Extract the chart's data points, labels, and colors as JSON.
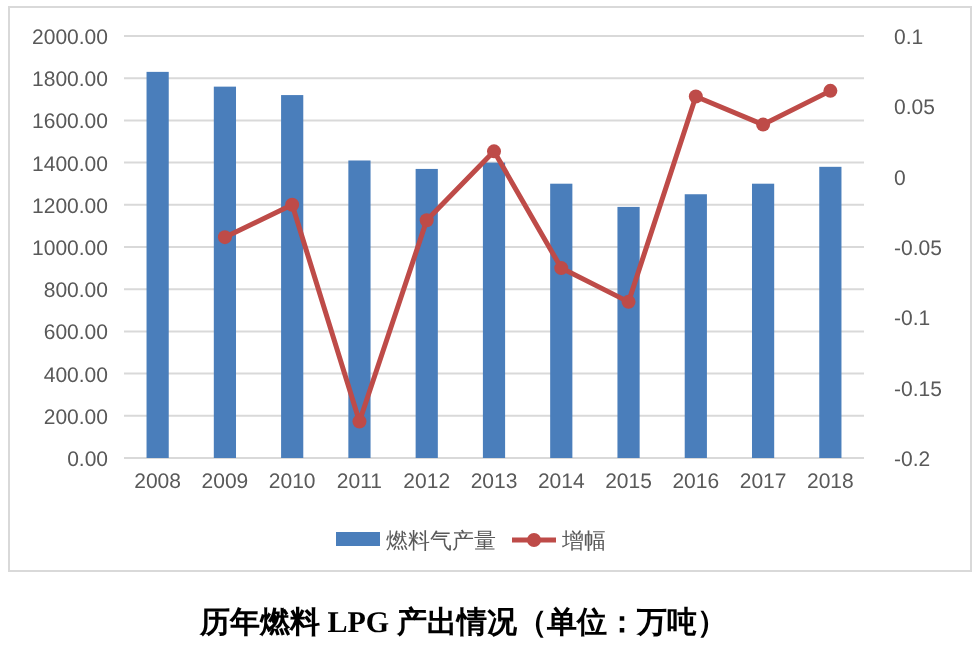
{
  "chart_data": {
    "type": "bar",
    "title": "历年燃料 LPG 产出情况（单位：万吨）",
    "categories": [
      "2008",
      "2009",
      "2010",
      "2011",
      "2012",
      "2013",
      "2014",
      "2015",
      "2016",
      "2017",
      "2018"
    ],
    "series": [
      {
        "name": "燃料气产量",
        "color": "#4a7ebb",
        "values": [
          1830,
          1760,
          1720,
          1410,
          1370,
          1400,
          1300,
          1190,
          1250,
          1300,
          1380
        ]
      },
      {
        "name": "增幅",
        "type": "line",
        "axis": "y2",
        "color": "#be4b48",
        "marker": "circle",
        "values": [
          null,
          -0.043,
          -0.02,
          -0.174,
          -0.031,
          0.018,
          -0.065,
          -0.089,
          0.057,
          0.037,
          0.061
        ]
      }
    ],
    "ylim": [
      0,
      2000
    ],
    "yticks": [
      {
        "value": 0,
        "label": "0.00"
      },
      {
        "value": 200,
        "label": "200.00"
      },
      {
        "value": 400,
        "label": "400.00"
      },
      {
        "value": 600,
        "label": "600.00"
      },
      {
        "value": 800,
        "label": "800.00"
      },
      {
        "value": 1000,
        "label": "1000.00"
      },
      {
        "value": 1200,
        "label": "1200.00"
      },
      {
        "value": 1400,
        "label": "1400.00"
      },
      {
        "value": 1600,
        "label": "1600.00"
      },
      {
        "value": 1800,
        "label": "1800.00"
      },
      {
        "value": 2000,
        "label": "2000.00"
      }
    ],
    "y2lim": [
      -0.2,
      0.1
    ],
    "y2ticks": [
      -0.2,
      -0.15,
      -0.1,
      -0.05,
      0,
      0.05,
      0.1
    ],
    "grid": "y",
    "legend": "bottom"
  }
}
